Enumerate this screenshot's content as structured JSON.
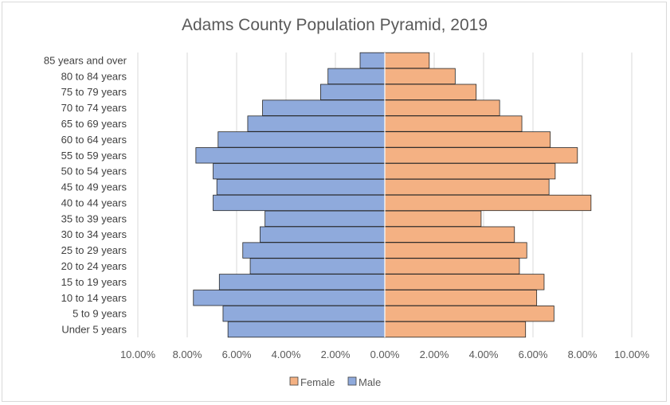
{
  "chart_data": {
    "type": "bar",
    "orientation": "horizontal",
    "title": "Adams County Population Pyramid, 2019",
    "categories": [
      "85 years and over",
      "80 to 84 years",
      "75 to 79 years",
      "70 to 74 years",
      "65 to 69 years",
      "60 to 64 years",
      "55 to 59 years",
      "50 to 54 years",
      "45 to 49 years",
      "40 to 44 years",
      "35 to 39 years",
      "30 to 34 years",
      "25 to 29 years",
      "20 to 24 years",
      "15 to 19 years",
      "10 to 14 years",
      "5 to 9 years",
      "Under 5 years"
    ],
    "series": [
      {
        "name": "Female",
        "color": "#f4b183",
        "values": [
          1.8,
          2.85,
          3.7,
          4.65,
          5.55,
          6.7,
          7.8,
          6.9,
          6.65,
          8.35,
          3.9,
          5.25,
          5.75,
          5.45,
          6.45,
          6.15,
          6.85,
          5.7
        ]
      },
      {
        "name": "Male",
        "color": "#8faadc",
        "values": [
          -1.0,
          -2.3,
          -2.6,
          -4.95,
          -5.55,
          -6.75,
          -7.65,
          -6.95,
          -6.8,
          -6.95,
          -4.85,
          -5.05,
          -5.75,
          -5.45,
          -6.7,
          -7.75,
          -6.55,
          -6.35
        ]
      }
    ],
    "xlim": [
      -10,
      10
    ],
    "xticks": [
      -10,
      -8,
      -6,
      -4,
      -2,
      0,
      2,
      4,
      6,
      8,
      10
    ],
    "tick_labels": [
      "10.00%",
      "8.00%",
      "6.00%",
      "4.00%",
      "2.00%",
      "0.00%",
      "2.00%",
      "4.00%",
      "6.00%",
      "8.00%",
      "10.00%"
    ],
    "grid": true,
    "legend_position": "bottom"
  }
}
